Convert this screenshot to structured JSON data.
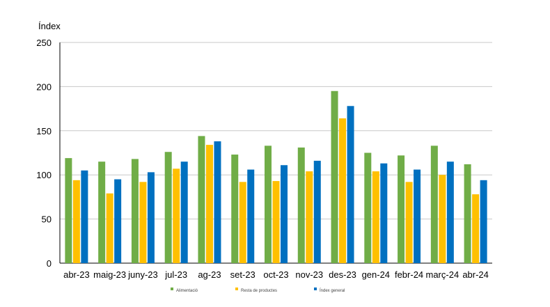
{
  "chart_data": {
    "type": "bar",
    "ylabel": "Índex",
    "ylim": [
      0,
      250
    ],
    "yticks": [
      0,
      50,
      100,
      150,
      200,
      250
    ],
    "grid": true,
    "legend_position": "bottom",
    "categories": [
      "abr-23",
      "maig-23",
      "juny-23",
      "jul-23",
      "ag-23",
      "set-23",
      "oct-23",
      "nov-23",
      "des-23",
      "gen-24",
      "febr-24",
      "març-24",
      "abr-24"
    ],
    "series": [
      {
        "name": "Alimentació",
        "color": "#70AD47",
        "values": [
          119,
          115,
          118,
          126,
          144,
          123,
          133,
          131,
          195,
          125,
          122,
          133,
          112
        ]
      },
      {
        "name": "Resta de productes",
        "color": "#FFC000",
        "values": [
          94,
          79,
          92,
          107,
          134,
          92,
          93,
          104,
          164,
          104,
          92,
          100,
          78
        ]
      },
      {
        "name": "Índex general",
        "color": "#0070C0",
        "values": [
          105,
          95,
          103,
          115,
          138,
          106,
          111,
          116,
          178,
          113,
          106,
          115,
          94
        ]
      }
    ]
  }
}
